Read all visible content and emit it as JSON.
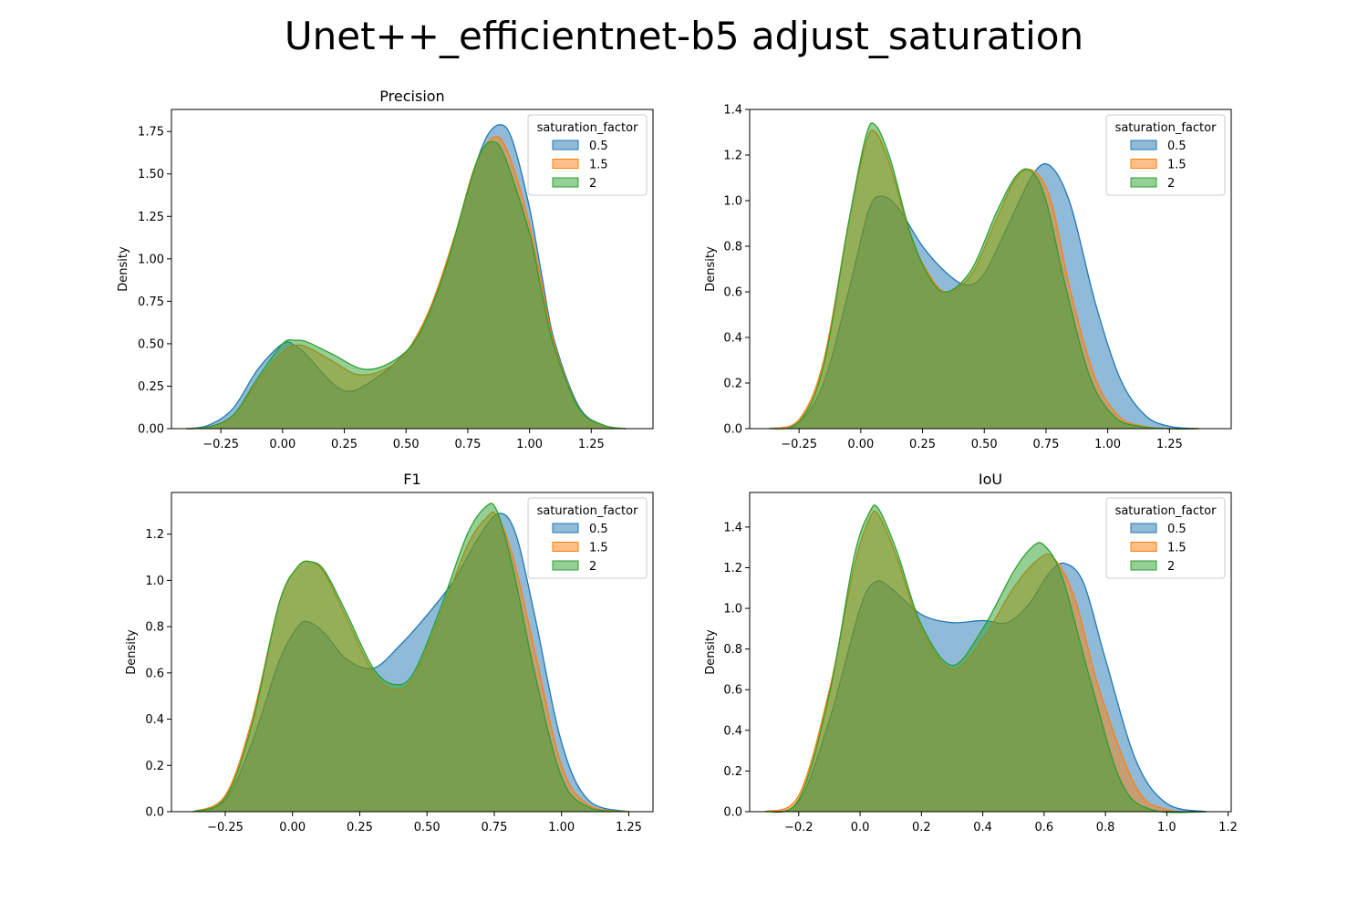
{
  "suptitle": "Unet++_efficientnet-b5 adjust_saturation",
  "colors": {
    "0.5": "#1f77b4",
    "1.5": "#ff7f0e",
    "2": "#2ca02c"
  },
  "chart_data": [
    {
      "type": "area",
      "title": "Precision",
      "xlabel": "",
      "ylabel": "Density",
      "xlim": [
        -0.45,
        1.5
      ],
      "ylim": [
        0,
        1.88
      ],
      "xticks": [
        -0.25,
        0.0,
        0.25,
        0.5,
        0.75,
        1.0,
        1.25
      ],
      "xtick_labels": [
        "−0.25",
        "0.00",
        "0.25",
        "0.50",
        "0.75",
        "1.00",
        "1.25"
      ],
      "yticks": [
        0.0,
        0.25,
        0.5,
        0.75,
        1.0,
        1.25,
        1.5,
        1.75
      ],
      "ytick_labels": [
        "0.00",
        "0.25",
        "0.50",
        "0.75",
        "1.00",
        "1.25",
        "1.50",
        "1.75"
      ],
      "legend": {
        "title": "saturation_factor",
        "placement": "top-right"
      },
      "series": [
        {
          "name": "0.5",
          "x": [
            -0.39,
            -0.3,
            -0.2,
            -0.1,
            0.0,
            0.05,
            0.1,
            0.2,
            0.27,
            0.35,
            0.45,
            0.55,
            0.65,
            0.75,
            0.82,
            0.88,
            0.93,
            1.0,
            1.05,
            1.1,
            1.2,
            1.3,
            1.39
          ],
          "y": [
            0.0,
            0.02,
            0.12,
            0.35,
            0.5,
            0.49,
            0.43,
            0.27,
            0.22,
            0.27,
            0.38,
            0.55,
            0.9,
            1.4,
            1.7,
            1.79,
            1.7,
            1.3,
            0.9,
            0.52,
            0.13,
            0.02,
            0.0
          ]
        },
        {
          "name": "1.5",
          "x": [
            -0.39,
            -0.3,
            -0.2,
            -0.1,
            0.0,
            0.05,
            0.1,
            0.2,
            0.3,
            0.4,
            0.5,
            0.6,
            0.7,
            0.78,
            0.86,
            0.92,
            1.0,
            1.05,
            1.1,
            1.2,
            1.3,
            1.39
          ],
          "y": [
            0.0,
            0.01,
            0.08,
            0.28,
            0.45,
            0.49,
            0.48,
            0.4,
            0.32,
            0.34,
            0.45,
            0.72,
            1.15,
            1.55,
            1.72,
            1.6,
            1.2,
            0.85,
            0.5,
            0.12,
            0.02,
            0.0
          ]
        },
        {
          "name": "2",
          "x": [
            -0.39,
            -0.3,
            -0.2,
            -0.1,
            0.0,
            0.05,
            0.1,
            0.2,
            0.33,
            0.45,
            0.55,
            0.65,
            0.75,
            0.8,
            0.85,
            0.9,
            1.0,
            1.05,
            1.1,
            1.2,
            1.3,
            1.39
          ],
          "y": [
            0.0,
            0.01,
            0.08,
            0.3,
            0.5,
            0.52,
            0.51,
            0.44,
            0.35,
            0.4,
            0.55,
            0.9,
            1.4,
            1.62,
            1.69,
            1.6,
            1.15,
            0.8,
            0.48,
            0.12,
            0.02,
            0.0
          ]
        }
      ]
    },
    {
      "type": "area",
      "title": "",
      "xlabel": "",
      "ylabel": "Density",
      "xlim": [
        -0.45,
        1.5
      ],
      "ylim": [
        0,
        1.4
      ],
      "xticks": [
        -0.25,
        0.0,
        0.25,
        0.5,
        0.75,
        1.0,
        1.25
      ],
      "xtick_labels": [
        "−0.25",
        "0.00",
        "0.25",
        "0.50",
        "0.75",
        "1.00",
        "1.25"
      ],
      "yticks": [
        0.0,
        0.2,
        0.4,
        0.6,
        0.8,
        1.0,
        1.2,
        1.4
      ],
      "ytick_labels": [
        "0.0",
        "0.2",
        "0.4",
        "0.6",
        "0.8",
        "1.0",
        "1.2",
        "1.4"
      ],
      "legend": {
        "title": "saturation_factor",
        "placement": "top-right"
      },
      "series": [
        {
          "name": "0.5",
          "x": [
            -0.37,
            -0.25,
            -0.15,
            -0.05,
            0.03,
            0.08,
            0.15,
            0.25,
            0.35,
            0.43,
            0.5,
            0.6,
            0.7,
            0.77,
            0.85,
            0.95,
            1.05,
            1.15,
            1.25,
            1.37
          ],
          "y": [
            0.0,
            0.03,
            0.2,
            0.6,
            0.95,
            1.02,
            0.97,
            0.8,
            0.68,
            0.63,
            0.68,
            0.9,
            1.12,
            1.15,
            0.98,
            0.55,
            0.22,
            0.06,
            0.01,
            0.0
          ]
        },
        {
          "name": "1.5",
          "x": [
            -0.37,
            -0.25,
            -0.15,
            -0.05,
            0.02,
            0.06,
            0.12,
            0.2,
            0.28,
            0.35,
            0.45,
            0.55,
            0.63,
            0.7,
            0.77,
            0.85,
            0.95,
            1.05,
            1.15,
            1.25,
            1.37
          ],
          "y": [
            0.0,
            0.04,
            0.3,
            0.9,
            1.25,
            1.3,
            1.15,
            0.85,
            0.67,
            0.6,
            0.68,
            0.92,
            1.1,
            1.13,
            1.0,
            0.6,
            0.22,
            0.05,
            0.01,
            0.0,
            0.0
          ]
        },
        {
          "name": "2",
          "x": [
            -0.37,
            -0.25,
            -0.15,
            -0.05,
            0.02,
            0.06,
            0.12,
            0.2,
            0.28,
            0.35,
            0.45,
            0.55,
            0.63,
            0.69,
            0.75,
            0.83,
            0.93,
            1.03,
            1.13,
            1.25,
            1.37
          ],
          "y": [
            0.0,
            0.03,
            0.28,
            0.9,
            1.28,
            1.33,
            1.18,
            0.86,
            0.66,
            0.6,
            0.7,
            0.95,
            1.11,
            1.13,
            1.0,
            0.62,
            0.22,
            0.05,
            0.01,
            0.0,
            0.0
          ]
        }
      ]
    },
    {
      "type": "area",
      "title": "F1",
      "xlabel": "",
      "ylabel": "Density",
      "xlim": [
        -0.45,
        1.34
      ],
      "ylim": [
        0,
        1.38
      ],
      "xticks": [
        -0.25,
        0.0,
        0.25,
        0.5,
        0.75,
        1.0,
        1.25
      ],
      "xtick_labels": [
        "−0.25",
        "0.00",
        "0.25",
        "0.50",
        "0.75",
        "1.00",
        "1.25"
      ],
      "yticks": [
        0.0,
        0.2,
        0.4,
        0.6,
        0.8,
        1.0,
        1.2
      ],
      "ytick_labels": [
        "0.0",
        "0.2",
        "0.4",
        "0.6",
        "0.8",
        "1.0",
        "1.2"
      ],
      "legend": {
        "title": "saturation_factor",
        "placement": "top-right"
      },
      "series": [
        {
          "name": "0.5",
          "x": [
            -0.37,
            -0.25,
            -0.15,
            -0.05,
            0.02,
            0.06,
            0.12,
            0.2,
            0.3,
            0.4,
            0.5,
            0.6,
            0.7,
            0.77,
            0.83,
            0.9,
            1.0,
            1.1,
            1.25
          ],
          "y": [
            0.0,
            0.05,
            0.3,
            0.65,
            0.8,
            0.82,
            0.77,
            0.66,
            0.62,
            0.72,
            0.85,
            1.0,
            1.2,
            1.29,
            1.2,
            0.85,
            0.3,
            0.05,
            0.0
          ]
        },
        {
          "name": "1.5",
          "x": [
            -0.37,
            -0.25,
            -0.15,
            -0.05,
            0.02,
            0.07,
            0.12,
            0.2,
            0.3,
            0.38,
            0.45,
            0.55,
            0.65,
            0.72,
            0.76,
            0.82,
            0.9,
            1.0,
            1.1,
            1.25
          ],
          "y": [
            0.0,
            0.07,
            0.4,
            0.9,
            1.06,
            1.08,
            1.03,
            0.84,
            0.6,
            0.53,
            0.58,
            0.85,
            1.15,
            1.27,
            1.28,
            1.1,
            0.7,
            0.2,
            0.03,
            0.0
          ]
        },
        {
          "name": "2",
          "x": [
            -0.37,
            -0.25,
            -0.15,
            -0.05,
            0.02,
            0.07,
            0.12,
            0.2,
            0.3,
            0.38,
            0.45,
            0.55,
            0.65,
            0.72,
            0.76,
            0.82,
            0.9,
            1.0,
            1.1,
            1.25
          ],
          "y": [
            0.0,
            0.06,
            0.38,
            0.9,
            1.06,
            1.08,
            1.04,
            0.86,
            0.62,
            0.55,
            0.6,
            0.88,
            1.2,
            1.32,
            1.3,
            1.05,
            0.6,
            0.15,
            0.02,
            0.0
          ]
        }
      ]
    },
    {
      "type": "area",
      "title": "IoU",
      "xlabel": "",
      "ylabel": "Density",
      "xlim": [
        -0.36,
        1.21
      ],
      "ylim": [
        0,
        1.57
      ],
      "xticks": [
        -0.2,
        0.0,
        0.2,
        0.4,
        0.6,
        0.8,
        1.0,
        1.2
      ],
      "xtick_labels": [
        "−0.2",
        "0.0",
        "0.2",
        "0.4",
        "0.6",
        "0.8",
        "1.0",
        "1.2"
      ],
      "yticks": [
        0.0,
        0.2,
        0.4,
        0.6,
        0.8,
        1.0,
        1.2,
        1.4
      ],
      "ytick_labels": [
        "0.0",
        "0.2",
        "0.4",
        "0.6",
        "0.8",
        "1.0",
        "1.2",
        "1.4"
      ],
      "legend": {
        "title": "saturation_factor",
        "placement": "top-right"
      },
      "series": [
        {
          "name": "0.5",
          "x": [
            -0.31,
            -0.2,
            -0.1,
            0.0,
            0.05,
            0.1,
            0.2,
            0.3,
            0.4,
            0.48,
            0.55,
            0.62,
            0.67,
            0.73,
            0.8,
            0.9,
            1.0,
            1.13
          ],
          "y": [
            0.0,
            0.05,
            0.45,
            1.0,
            1.13,
            1.1,
            0.97,
            0.93,
            0.94,
            0.93,
            1.02,
            1.18,
            1.22,
            1.12,
            0.75,
            0.25,
            0.04,
            0.0
          ]
        },
        {
          "name": "1.5",
          "x": [
            -0.31,
            -0.2,
            -0.1,
            -0.02,
            0.03,
            0.06,
            0.12,
            0.2,
            0.3,
            0.4,
            0.5,
            0.58,
            0.63,
            0.7,
            0.78,
            0.9,
            1.0,
            1.13
          ],
          "y": [
            0.0,
            0.08,
            0.6,
            1.2,
            1.44,
            1.46,
            1.25,
            0.9,
            0.7,
            0.85,
            1.1,
            1.24,
            1.25,
            1.05,
            0.6,
            0.12,
            0.01,
            0.0
          ]
        },
        {
          "name": "2",
          "x": [
            -0.31,
            -0.2,
            -0.1,
            -0.02,
            0.03,
            0.06,
            0.12,
            0.2,
            0.3,
            0.4,
            0.5,
            0.56,
            0.6,
            0.66,
            0.75,
            0.85,
            0.95,
            1.13
          ],
          "y": [
            0.0,
            0.06,
            0.58,
            1.25,
            1.47,
            1.49,
            1.28,
            0.92,
            0.72,
            0.9,
            1.18,
            1.3,
            1.31,
            1.15,
            0.65,
            0.15,
            0.01,
            0.0
          ]
        }
      ]
    }
  ]
}
